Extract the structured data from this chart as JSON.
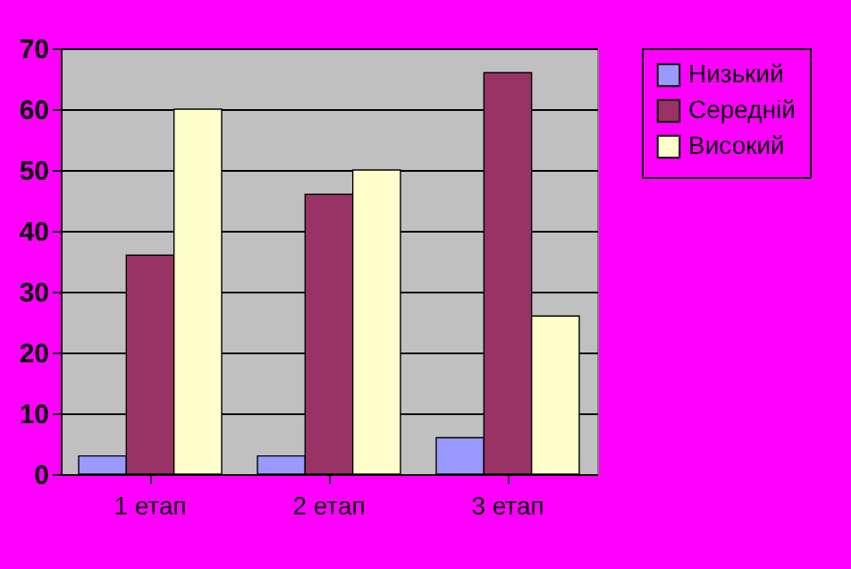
{
  "chart_data": {
    "type": "bar",
    "categories": [
      "1 етап",
      "2 етап",
      "3 етап"
    ],
    "series": [
      {
        "name": "Низький",
        "color": "#9999ff",
        "values": [
          3,
          3,
          6
        ]
      },
      {
        "name": "Середній",
        "color": "#993366",
        "values": [
          36,
          46,
          66
        ]
      },
      {
        "name": "Високий",
        "color": "#ffffcc",
        "values": [
          60,
          50,
          26
        ]
      }
    ],
    "ylim": [
      0,
      70
    ],
    "yticks": [
      0,
      10,
      20,
      30,
      40,
      50,
      60,
      70
    ],
    "grid": "y",
    "legend": "right"
  }
}
